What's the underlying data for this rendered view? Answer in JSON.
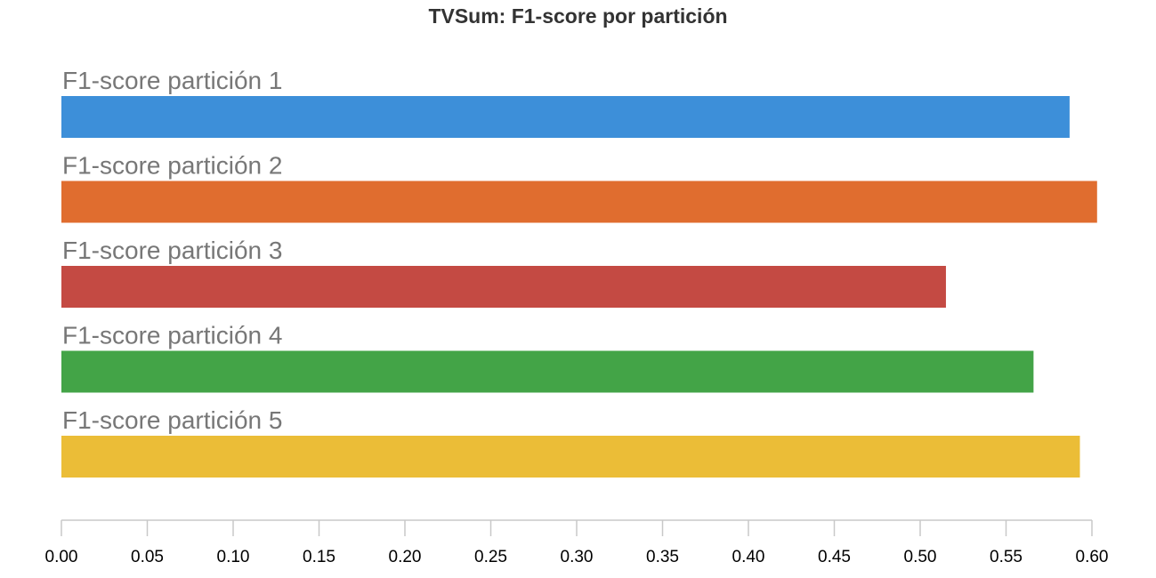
{
  "chart_data": {
    "type": "bar",
    "orientation": "horizontal",
    "title": "TVSum: F1-score por partición",
    "xlabel": "",
    "ylabel": "",
    "xlim": [
      0,
      0.6
    ],
    "grid": false,
    "legend": "none",
    "categories": [
      "F1-score partición 1",
      "F1-score partición 2",
      "F1-score partición 3",
      "F1-score partición 4",
      "F1-score partición 5"
    ],
    "values": [
      0.587,
      0.603,
      0.515,
      0.566,
      0.593
    ],
    "colors": [
      "#3d8fd9",
      "#e06d2f",
      "#c44a43",
      "#43a447",
      "#ebbd37"
    ],
    "x_ticks": [
      "0.00",
      "0.05",
      "0.10",
      "0.15",
      "0.20",
      "0.25",
      "0.30",
      "0.35",
      "0.40",
      "0.45",
      "0.50",
      "0.55",
      "0.60"
    ]
  }
}
